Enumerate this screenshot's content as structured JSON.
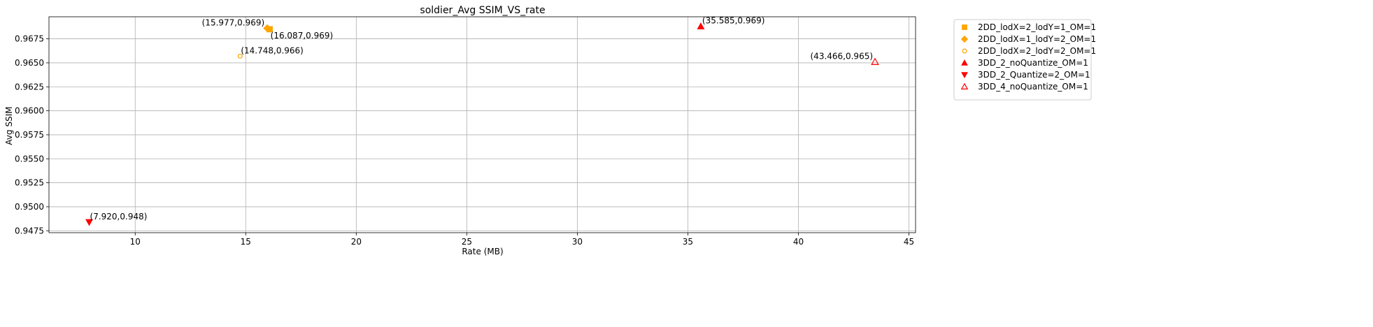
{
  "chart_data": {
    "type": "scatter",
    "title": "soldier_Avg SSIM_VS_rate",
    "xlabel": "Rate (MB)",
    "ylabel": "Avg SSIM",
    "xlim": [
      6.1,
      45.3
    ],
    "ylim": [
      0.9473,
      0.9698
    ],
    "xticks": [
      10,
      15,
      20,
      25,
      30,
      35,
      40,
      45
    ],
    "yticks": [
      0.9475,
      0.95,
      0.9525,
      0.955,
      0.9575,
      0.96,
      0.9625,
      0.965,
      0.9675
    ],
    "xtick_labels": [
      "10",
      "15",
      "20",
      "25",
      "30",
      "35",
      "40",
      "45"
    ],
    "ytick_labels": [
      "0.9475",
      "0.9500",
      "0.9525",
      "0.9550",
      "0.9575",
      "0.9600",
      "0.9625",
      "0.9650",
      "0.9675"
    ],
    "grid": true,
    "legend_position": "outside-top-right",
    "series": [
      {
        "name": "2DD_lodX=2_lodY=1_OM=1",
        "marker": "square",
        "filled": true,
        "color": "#FFA500",
        "points": [
          {
            "x": 16.087,
            "y": 0.9685,
            "label": "(16.087,0.969)"
          }
        ]
      },
      {
        "name": "2DD_lodX=1_lodY=2_OM=1",
        "marker": "diamond",
        "filled": true,
        "color": "#FFA500",
        "points": [
          {
            "x": 15.977,
            "y": 0.9686,
            "label": "(15.977,0.969)"
          }
        ]
      },
      {
        "name": "2DD_lodX=2_lodY=2_OM=1",
        "marker": "octagon",
        "filled": false,
        "color": "#FFA500",
        "points": [
          {
            "x": 14.748,
            "y": 0.9657,
            "label": "(14.748,0.966)"
          }
        ]
      },
      {
        "name": "3DD_2_noQuantize_OM=1",
        "marker": "triangle-up",
        "filled": true,
        "color": "#FF0000",
        "points": [
          {
            "x": 35.585,
            "y": 0.9688,
            "label": "(35.585,0.969)"
          }
        ]
      },
      {
        "name": "3DD_2_Quantize=2_OM=1",
        "marker": "triangle-down",
        "filled": true,
        "color": "#FF0000",
        "points": [
          {
            "x": 7.92,
            "y": 0.9484,
            "label": "(7.920,0.948)"
          }
        ]
      },
      {
        "name": "3DD_4_noQuantize_OM=1",
        "marker": "triangle-up",
        "filled": false,
        "color": "#FF0000",
        "points": [
          {
            "x": 43.466,
            "y": 0.9651,
            "label": "(43.466,0.965)"
          }
        ]
      }
    ]
  }
}
